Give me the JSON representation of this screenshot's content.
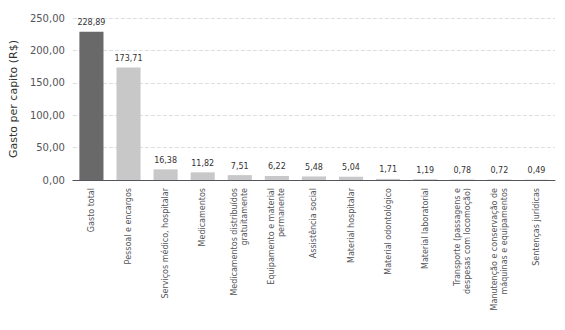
{
  "chart_data": {
    "type": "bar",
    "categories": [
      "Gasto total",
      "Pessoal e encargos",
      "Serviços médico, hospitalar",
      "Medicamentos",
      "Medicamentos distribuídos\ngratuitamente",
      "Equipamento e material\npermanente",
      "Assistência social",
      "Material hospitalar",
      "Material odontológico",
      "Material laboratorial",
      "Transporte (passagens e\ndespesas com locomoção)",
      "Manutenção e conservação de\nmáquinas e equipamentos",
      "Sentenças jurídicas"
    ],
    "values": [
      228.89,
      173.71,
      16.38,
      11.82,
      7.51,
      6.22,
      5.48,
      5.04,
      1.71,
      1.19,
      0.78,
      0.72,
      0.49
    ],
    "value_labels": [
      "228,89",
      "173,71",
      "16,38",
      "11,82",
      "7,51",
      "6,22",
      "5,48",
      "5,04",
      "1,71",
      "1,19",
      "0,78",
      "0,72",
      "0,49"
    ],
    "colors": [
      "#696969",
      "#c8c8c8",
      "#c8c8c8",
      "#c8c8c8",
      "#c8c8c8",
      "#c8c8c8",
      "#c8c8c8",
      "#c8c8c8",
      "#c8c8c8",
      "#c8c8c8",
      "#c8c8c8",
      "#c8c8c8",
      "#c8c8c8"
    ],
    "ylabel": "Gasto per capito (R$)",
    "ylim": [
      0,
      250
    ],
    "yticks": [
      {
        "value": 0,
        "label": "0,00"
      },
      {
        "value": 50,
        "label": "50,00"
      },
      {
        "value": 100,
        "label": "100,00"
      },
      {
        "value": 150,
        "label": "150,00"
      },
      {
        "value": 200,
        "label": "200,00"
      },
      {
        "value": 250,
        "label": "250,00"
      }
    ],
    "grid": true,
    "data_labels": true
  }
}
